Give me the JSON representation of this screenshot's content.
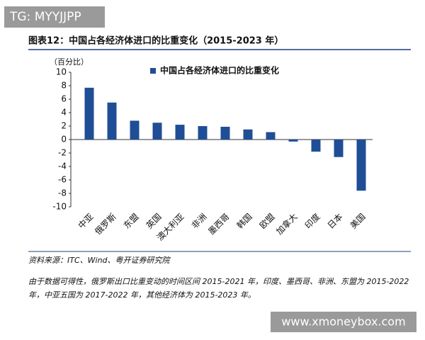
{
  "watermark": "TG: MYYJJPP",
  "chart_data": {
    "type": "bar",
    "title": "图表12：中国占各经济体进口的比重变化（2015-2023 年）",
    "ylabel": "（百分比）",
    "categories": [
      "中亚",
      "俄罗斯",
      "东盟",
      "英国",
      "澳大利亚",
      "非洲",
      "墨西哥",
      "韩国",
      "欧盟",
      "加拿大",
      "印度",
      "日本",
      "美国"
    ],
    "series": [
      {
        "name": "中国占各经济体进口的比重变化",
        "color": "#1f4e96",
        "values": [
          7.7,
          5.5,
          2.8,
          2.5,
          2.2,
          2.0,
          1.9,
          1.5,
          1.1,
          -0.3,
          -1.8,
          -2.6,
          -7.6
        ]
      }
    ],
    "ylim": [
      -10,
      10
    ],
    "yticks": [
      -10,
      -8,
      -6,
      -4,
      -2,
      0,
      2,
      4,
      6,
      8,
      10
    ],
    "grid": false
  },
  "source": "资料来源：ITC、Wind、粤开证券研究院",
  "notes": [
    "由于数据可得性，俄罗斯出口比重变动的时间区间 2015-2021 年，印度、墨西哥、非洲、东盟为 2015-2022",
    "年，中亚五国为 2017-2022 年，其他经济体为 2015-2023 年。"
  ],
  "site": "www.xmoneybox.com"
}
